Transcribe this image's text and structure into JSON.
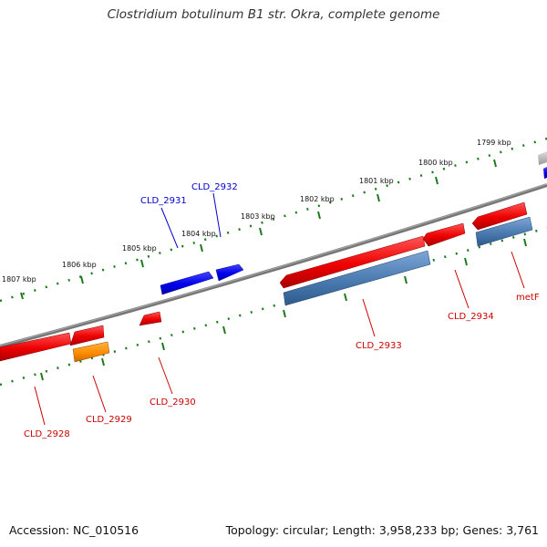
{
  "title": "Clostridium botulinum B1 str. Okra, complete genome",
  "footer": {
    "accession": "Accession: NC_010516",
    "topology": "Topology: circular; Length: 3,958,233 bp; Genes: 3,761"
  },
  "colors": {
    "backbone": "#777777",
    "ruler": "#1f7a1f",
    "forward_cds": "#0000ee",
    "reverse_cds": "#ee0000",
    "reverse_gene": "#4a7ab0",
    "rna": "#ff8c00",
    "other": "#bbbbbb",
    "forward_label": "#0000cc",
    "reverse_label": "#cc0000"
  },
  "ruler_labels": [
    "1807 kbp",
    "1806 kbp",
    "1805 kbp",
    "1804 kbp",
    "1803 kbp",
    "1802 kbp",
    "1801 kbp",
    "1800 kbp",
    "1799 kbp"
  ],
  "genes_forward": [
    {
      "label": "CLD_2931"
    },
    {
      "label": "CLD_2932"
    }
  ],
  "genes_reverse": [
    {
      "label": "CLD_2928"
    },
    {
      "label": "CLD_2929"
    },
    {
      "label": "CLD_2930"
    },
    {
      "label": "CLD_2933"
    },
    {
      "label": "CLD_2934"
    },
    {
      "label": "metF"
    }
  ]
}
